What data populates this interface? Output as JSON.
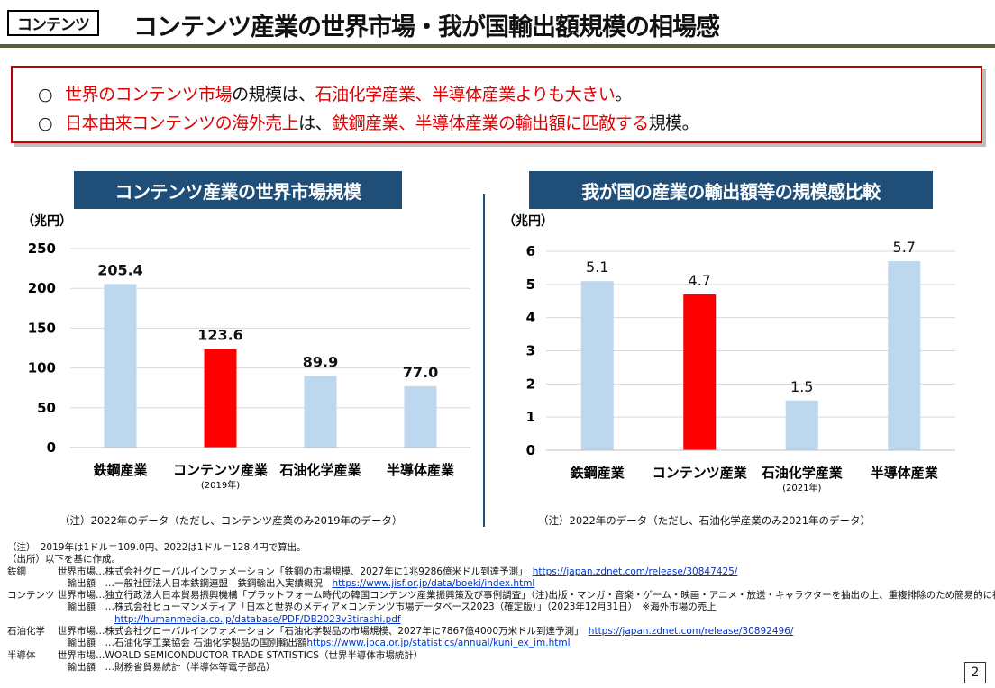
{
  "header": {
    "tag": "コンテンツ",
    "title": "コンテンツ産業の世界市場・我が国輸出額規模の相場感"
  },
  "summary": {
    "mark": "○",
    "line1": [
      {
        "t": "世界のコンテンツ市場",
        "red": true
      },
      {
        "t": "の規模は、",
        "red": false
      },
      {
        "t": "石油化学産業、半導体産業よりも大きい",
        "red": true
      },
      {
        "t": "。",
        "red": false
      }
    ],
    "line2": [
      {
        "t": "日本由来コンテンツの海外売上",
        "red": true
      },
      {
        "t": "は、",
        "red": false
      },
      {
        "t": "鉄鋼産業、半導体産業の輸出額に匹敵する",
        "red": true
      },
      {
        "t": "規模。",
        "red": false
      }
    ]
  },
  "chart_data": [
    {
      "type": "bar",
      "title": "コンテンツ産業の世界市場規模",
      "ylabel": "（兆円）",
      "ylim": [
        0,
        250
      ],
      "yticks": [
        0,
        50,
        100,
        150,
        200,
        250
      ],
      "categories": [
        "鉄鋼産業",
        "コンテンツ産業",
        "石油化学産業",
        "半導体産業"
      ],
      "category_notes": [
        "",
        "(2019年)",
        "",
        ""
      ],
      "values": [
        205.4,
        123.6,
        89.9,
        77.0
      ],
      "value_labels": [
        "205.4",
        "123.6",
        "89.9",
        "77.0"
      ],
      "highlight_index": 1,
      "colors": {
        "bar": "#bdd7ee",
        "highlight": "#ff0000"
      },
      "grid": true,
      "note": "（注）2022年のデータ（ただし、コンテンツ産業のみ2019年のデータ）"
    },
    {
      "type": "bar",
      "title": "我が国の産業の輸出額等の規模感比較",
      "ylabel": "（兆円）",
      "ylim": [
        0,
        6
      ],
      "yticks": [
        0,
        1,
        2,
        3,
        4,
        5,
        6
      ],
      "categories": [
        "鉄鋼産業",
        "コンテンツ産業",
        "石油化学産業",
        "半導体産業"
      ],
      "category_notes": [
        "",
        "",
        "(2021年)",
        ""
      ],
      "values": [
        5.1,
        4.7,
        1.5,
        5.7
      ],
      "value_labels": [
        "5.1",
        "4.7",
        "1.5",
        "5.7"
      ],
      "highlight_index": 1,
      "colors": {
        "bar": "#bdd7ee",
        "highlight": "#ff0000"
      },
      "grid": true,
      "note": "（注）2022年のデータ（ただし、石油化学産業のみ2021年のデータ）"
    }
  ],
  "footer": [
    [
      {
        "t": "（注）　2019年は1ドル＝109.0円、2022は1ドル＝128.4円で算出。"
      }
    ],
    [
      {
        "t": "（出所）以下を基に作成。"
      }
    ],
    [
      {
        "t": "鉄鋼"
      },
      {
        "t": "世界市場…株式会社グローバルインフォメーション「鉄鋼の市場規模、2027年に1兆9286億米ドル到達予測」　"
      },
      {
        "t": "https://japan.zdnet.com/release/30847425/",
        "link": true
      }
    ],
    [
      {
        "t": ""
      },
      {
        "t": "　輸出額　…一般社団法人日本鉄鋼連盟　鉄鋼輸出入実績概況　"
      },
      {
        "t": "https://www.jisf.or.jp/data/boeki/index.html",
        "link": true
      }
    ],
    [
      {
        "t": "コンテンツ"
      },
      {
        "t": "世界市場…独立行政法人日本貿易振興機構「プラットフォーム時代の韓国コンテンツ産業振興策及び事例調査」（注)出版・マンガ・音楽・ゲーム・映画・アニメ・放送・キャラクターを抽出の上、重複排除のため簡易的に補正"
      }
    ],
    [
      {
        "t": ""
      },
      {
        "t": "　輸出額　…株式会社ヒューマンメディア「日本と世界のメディア×コンテンツ市場データベース2023（確定版）」（2023年12月31日）　※海外市場の売上"
      }
    ],
    [
      {
        "t": ""
      },
      {
        "t": "　　　　　　"
      },
      {
        "t": "http://humanmedia.co.jp/database/PDF/DB2023v3tirashi.pdf",
        "link": true
      }
    ],
    [
      {
        "t": "石油化学"
      },
      {
        "t": "世界市場…株式会社グローバルインフォメーション「石油化学製品の市場規模、2027年に7867億4000万米ドル到達予測」　"
      },
      {
        "t": "https://japan.zdnet.com/release/30892496/",
        "link": true
      }
    ],
    [
      {
        "t": ""
      },
      {
        "t": "　輸出額　…石油化学工業協会 石油化学製品の国別輸出額 "
      },
      {
        "t": "https://www.jpca.or.jp/statistics/annual/kuni_ex_im.html",
        "link": true
      }
    ],
    [
      {
        "t": "半導体"
      },
      {
        "t": "世界市場…WORLD SEMICONDUCTOR TRADE STATISTICS（世界半導体市場統計）"
      }
    ],
    [
      {
        "t": ""
      },
      {
        "t": "　輸出額　…財務省貿易統計（半導体等電子部品）"
      }
    ]
  ],
  "page_number": "2"
}
